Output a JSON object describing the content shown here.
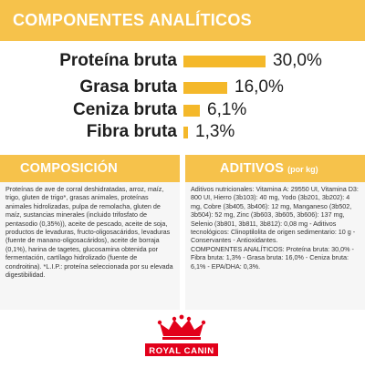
{
  "banner": {
    "title": "COMPONENTES ANALÍTICOS"
  },
  "nutrients": [
    {
      "label": "Proteína bruta",
      "value": "30,0%",
      "percent": 30.0
    },
    {
      "label": "Grasa bruta",
      "value": "16,0%",
      "percent": 16.0
    },
    {
      "label": "Ceniza bruta",
      "value": "6,1%",
      "percent": 6.1
    },
    {
      "label": "Fibra bruta",
      "value": "1,3%",
      "percent": 1.3
    }
  ],
  "composition": {
    "title": "COMPOSICIÓN",
    "text": "Proteínas de ave de corral deshidratadas, arroz, maíz, trigo, gluten de trigo*, grasas animales, proteínas animales hidrolizadas, pulpa de remolacha, gluten de maíz, sustancias minerales (incluido trifosfato de pentasodio (0,35%)), aceite de pescado, aceite de soja, productos de levaduras, fructo-oligosacáridos, levaduras (fuente de manano-oligosacáridos), aceite de borraja (0,1%), harina de tagetes, glucosamina obtenida por fermentación, cartílago hidrolizado (fuente de condroitina). *L.I.P.: proteína seleccionada por su elevada digestibilidad."
  },
  "additives": {
    "title": "ADITIVOS",
    "subtitle": "(por kg)",
    "text": "Aditivos nutricionales: Vitamina A: 29550 UI, Vitamina D3: 800 UI, Hierro (3b103): 40 mg, Yodo (3b201, 3b202): 4 mg, Cobre (3b405, 3b406): 12 mg, Manganeso (3b502, 3b504): 52 mg, Zinc (3b603, 3b605, 3b606): 137 mg, Selenio (3b801, 3b811, 3b812): 0,08 mg - Aditivos tecnológicos: Clinoptilolita de origen sedimentario: 10 g - Conservantes - Antioxidantes.\nCOMPONENTES ANALÍTICOS: Proteína bruta: 30,0% - Fibra bruta: 1,3% - Grasa bruta: 16,0% - Ceniza bruta: 6,1% - EPA/DHA: 0,3%."
  },
  "colors": {
    "accent": "#f6c24b",
    "bar": "#f4b82a",
    "logo_red": "#e2001a"
  },
  "logo": {
    "brand": "ROYAL CANIN"
  }
}
